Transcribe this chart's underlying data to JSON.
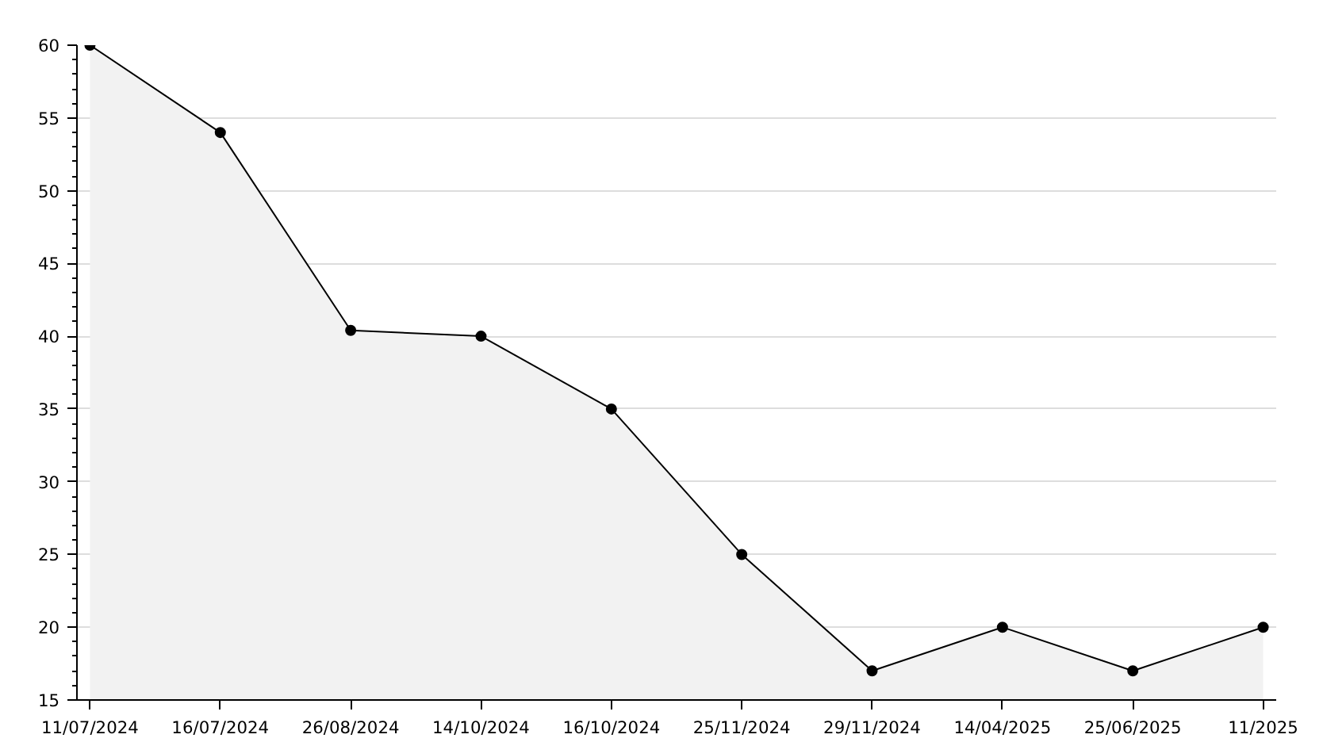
{
  "chart_data": {
    "type": "area",
    "categories": [
      "11/07/2024",
      "16/07/2024",
      "26/08/2024",
      "14/10/2024",
      "16/10/2024",
      "25/11/2024",
      "29/11/2024",
      "14/04/2025",
      "25/06/2025",
      "11/2025"
    ],
    "series": [
      {
        "color": "#000000",
        "values": [
          60,
          54,
          40.4,
          40,
          35,
          25,
          17,
          20,
          17,
          20
        ]
      }
    ],
    "ylim": [
      15,
      60
    ],
    "yticks": [
      15,
      20,
      25,
      30,
      35,
      40,
      45,
      50,
      55,
      60
    ],
    "grid": "y",
    "marker": "circle",
    "line_style": "solid"
  }
}
